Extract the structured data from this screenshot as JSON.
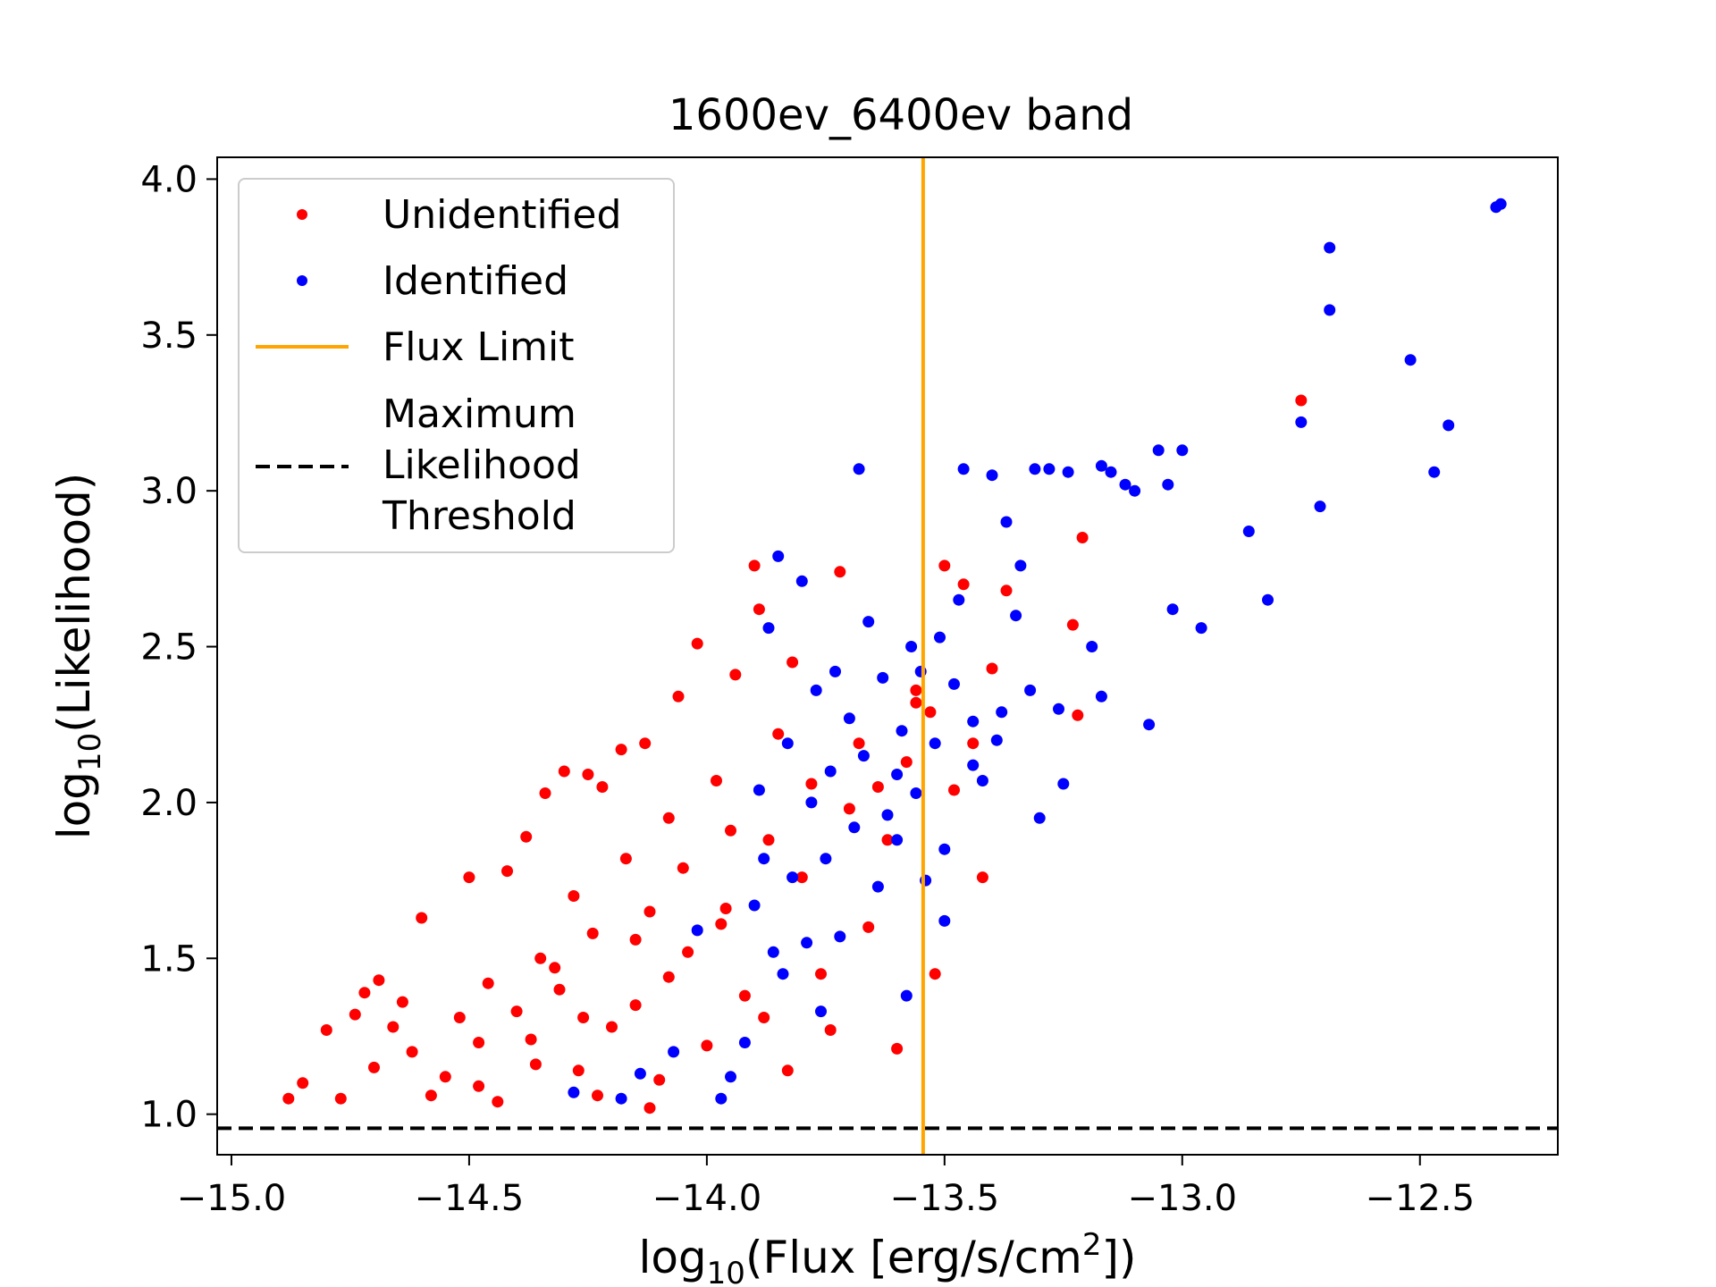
{
  "chart_data": {
    "type": "scatter",
    "title": "1600ev_6400ev band",
    "xlabel": {
      "prefix": "log",
      "sub": "10",
      "text": "(Flux [erg/s/cm",
      "sup": "2",
      "suffix": "])"
    },
    "ylabel": {
      "prefix": "log",
      "sub": "10",
      "text": "(Likelihood)"
    },
    "xlim": [
      -15.03,
      -12.21
    ],
    "ylim": [
      0.87,
      4.07
    ],
    "xticks": [
      -15.0,
      -14.5,
      -14.0,
      -13.5,
      -13.0,
      -12.5
    ],
    "xtick_labels": [
      "−15.0",
      "−14.5",
      "−14.0",
      "−13.5",
      "−13.0",
      "−12.5"
    ],
    "yticks": [
      1.0,
      1.5,
      2.0,
      2.5,
      3.0,
      3.5,
      4.0
    ],
    "ytick_labels": [
      "1.0",
      "1.5",
      "2.0",
      "2.5",
      "3.0",
      "3.5",
      "4.0"
    ],
    "flux_limit": -13.545,
    "likelihood_threshold": 0.955,
    "legend": {
      "position": "upper-left",
      "entries": [
        {
          "label": "Unidentified",
          "marker": "dot",
          "color": "#ff0000"
        },
        {
          "label": "Identified",
          "marker": "dot",
          "color": "#0000ff"
        },
        {
          "label": "Flux Limit",
          "marker": "line",
          "color": "#ffa500"
        },
        {
          "label": "Maximum\nLikelihood\nThreshold",
          "marker": "dashed",
          "color": "#000000"
        }
      ]
    },
    "colors": {
      "unidentified": "#ff0000",
      "identified": "#0000ff",
      "flux_limit": "#ffa500",
      "threshold": "#000000"
    },
    "series": [
      {
        "name": "Unidentified",
        "points": [
          [
            -14.88,
            1.05
          ],
          [
            -14.85,
            1.1
          ],
          [
            -14.8,
            1.27
          ],
          [
            -14.77,
            1.05
          ],
          [
            -14.74,
            1.32
          ],
          [
            -14.72,
            1.39
          ],
          [
            -14.7,
            1.15
          ],
          [
            -14.69,
            1.43
          ],
          [
            -14.66,
            1.28
          ],
          [
            -14.64,
            1.36
          ],
          [
            -14.62,
            1.2
          ],
          [
            -14.6,
            1.63
          ],
          [
            -14.58,
            1.06
          ],
          [
            -14.55,
            1.12
          ],
          [
            -14.52,
            1.31
          ],
          [
            -14.5,
            1.76
          ],
          [
            -14.48,
            1.23
          ],
          [
            -14.46,
            1.42
          ],
          [
            -14.44,
            1.04
          ],
          [
            -14.42,
            1.78
          ],
          [
            -14.4,
            1.33
          ],
          [
            -14.38,
            1.89
          ],
          [
            -14.36,
            1.16
          ],
          [
            -14.35,
            1.5
          ],
          [
            -14.34,
            2.03
          ],
          [
            -14.31,
            1.4
          ],
          [
            -14.3,
            2.1
          ],
          [
            -14.28,
            1.7
          ],
          [
            -14.27,
            1.14
          ],
          [
            -14.25,
            2.09
          ],
          [
            -14.24,
            1.58
          ],
          [
            -14.22,
            2.05
          ],
          [
            -14.2,
            1.28
          ],
          [
            -14.18,
            2.17
          ],
          [
            -14.17,
            1.82
          ],
          [
            -14.15,
            1.35
          ],
          [
            -14.13,
            2.19
          ],
          [
            -14.12,
            1.65
          ],
          [
            -14.1,
            1.11
          ],
          [
            -14.08,
            1.95
          ],
          [
            -14.06,
            2.34
          ],
          [
            -14.04,
            1.52
          ],
          [
            -14.02,
            2.51
          ],
          [
            -14.0,
            1.22
          ],
          [
            -13.98,
            2.07
          ],
          [
            -13.96,
            1.66
          ],
          [
            -13.94,
            2.41
          ],
          [
            -13.92,
            1.38
          ],
          [
            -13.9,
            2.76
          ],
          [
            -13.89,
            2.62
          ],
          [
            -13.87,
            1.88
          ],
          [
            -13.85,
            2.22
          ],
          [
            -13.83,
            1.14
          ],
          [
            -13.82,
            2.45
          ],
          [
            -13.8,
            1.76
          ],
          [
            -13.78,
            2.06
          ],
          [
            -13.76,
            1.45
          ],
          [
            -13.74,
            1.27
          ],
          [
            -13.72,
            2.74
          ],
          [
            -13.7,
            1.98
          ],
          [
            -13.68,
            2.19
          ],
          [
            -13.66,
            1.6
          ],
          [
            -13.64,
            2.05
          ],
          [
            -13.62,
            1.88
          ],
          [
            -13.6,
            1.21
          ],
          [
            -13.58,
            2.13
          ],
          [
            -13.56,
            2.32
          ],
          [
            -13.53,
            2.29
          ],
          [
            -13.5,
            2.76
          ],
          [
            -13.48,
            2.04
          ],
          [
            -13.46,
            2.7
          ],
          [
            -13.44,
            2.19
          ],
          [
            -13.42,
            1.76
          ],
          [
            -13.4,
            2.43
          ],
          [
            -13.37,
            2.68
          ],
          [
            -13.23,
            2.57
          ],
          [
            -13.22,
            2.28
          ],
          [
            -13.21,
            2.85
          ],
          [
            -12.75,
            3.29
          ],
          [
            -13.52,
            1.45
          ],
          [
            -13.56,
            2.36
          ],
          [
            -13.88,
            1.31
          ],
          [
            -14.23,
            1.06
          ],
          [
            -14.12,
            1.02
          ],
          [
            -14.48,
            1.09
          ],
          [
            -14.08,
            1.44
          ],
          [
            -13.97,
            1.61
          ],
          [
            -14.26,
            1.31
          ],
          [
            -14.37,
            1.24
          ],
          [
            -14.05,
            1.79
          ],
          [
            -13.95,
            1.91
          ],
          [
            -14.15,
            1.56
          ],
          [
            -14.32,
            1.47
          ]
        ]
      },
      {
        "name": "Identified",
        "points": [
          [
            -12.33,
            3.92
          ],
          [
            -12.34,
            3.91
          ],
          [
            -12.69,
            3.78
          ],
          [
            -12.69,
            3.58
          ],
          [
            -12.52,
            3.42
          ],
          [
            -12.75,
            3.22
          ],
          [
            -12.44,
            3.21
          ],
          [
            -12.47,
            3.06
          ],
          [
            -12.71,
            2.95
          ],
          [
            -12.86,
            2.87
          ],
          [
            -12.82,
            2.65
          ],
          [
            -12.96,
            2.56
          ],
          [
            -13.03,
            3.02
          ],
          [
            -13.05,
            3.13
          ],
          [
            -13.0,
            3.13
          ],
          [
            -13.02,
            2.62
          ],
          [
            -13.07,
            2.25
          ],
          [
            -13.1,
            3.0
          ],
          [
            -13.12,
            3.02
          ],
          [
            -13.15,
            3.06
          ],
          [
            -13.17,
            2.34
          ],
          [
            -13.17,
            3.08
          ],
          [
            -13.19,
            2.5
          ],
          [
            -13.24,
            3.06
          ],
          [
            -13.25,
            2.06
          ],
          [
            -13.26,
            2.3
          ],
          [
            -13.28,
            3.07
          ],
          [
            -13.3,
            1.95
          ],
          [
            -13.31,
            3.07
          ],
          [
            -13.32,
            2.36
          ],
          [
            -13.34,
            2.76
          ],
          [
            -13.35,
            2.6
          ],
          [
            -13.37,
            2.9
          ],
          [
            -13.38,
            2.29
          ],
          [
            -13.39,
            2.2
          ],
          [
            -13.4,
            3.05
          ],
          [
            -13.42,
            2.07
          ],
          [
            -13.44,
            2.26
          ],
          [
            -13.46,
            3.07
          ],
          [
            -13.47,
            2.65
          ],
          [
            -13.48,
            2.38
          ],
          [
            -13.5,
            1.62
          ],
          [
            -13.51,
            2.53
          ],
          [
            -13.52,
            2.19
          ],
          [
            -13.54,
            1.75
          ],
          [
            -13.55,
            2.42
          ],
          [
            -13.56,
            2.03
          ],
          [
            -13.57,
            2.5
          ],
          [
            -13.58,
            1.38
          ],
          [
            -13.59,
            2.23
          ],
          [
            -13.6,
            2.09
          ],
          [
            -13.62,
            1.96
          ],
          [
            -13.63,
            2.4
          ],
          [
            -13.64,
            1.73
          ],
          [
            -13.66,
            2.58
          ],
          [
            -13.67,
            2.15
          ],
          [
            -13.68,
            3.07
          ],
          [
            -13.69,
            1.92
          ],
          [
            -13.7,
            2.27
          ],
          [
            -13.72,
            1.57
          ],
          [
            -13.73,
            2.42
          ],
          [
            -13.74,
            2.1
          ],
          [
            -13.75,
            1.82
          ],
          [
            -13.77,
            2.36
          ],
          [
            -13.78,
            2.0
          ],
          [
            -13.79,
            1.55
          ],
          [
            -13.8,
            2.71
          ],
          [
            -13.82,
            1.76
          ],
          [
            -13.83,
            2.19
          ],
          [
            -13.84,
            1.45
          ],
          [
            -13.85,
            2.79
          ],
          [
            -13.87,
            2.56
          ],
          [
            -13.88,
            1.82
          ],
          [
            -13.89,
            2.04
          ],
          [
            -13.9,
            1.67
          ],
          [
            -13.92,
            1.23
          ],
          [
            -13.95,
            1.12
          ],
          [
            -13.97,
            1.05
          ],
          [
            -14.02,
            1.59
          ],
          [
            -14.07,
            1.2
          ],
          [
            -14.14,
            1.13
          ],
          [
            -14.18,
            1.05
          ],
          [
            -14.28,
            1.07
          ],
          [
            -13.6,
            1.88
          ],
          [
            -13.76,
            1.33
          ],
          [
            -13.5,
            1.85
          ],
          [
            -13.44,
            2.12
          ],
          [
            -13.86,
            1.52
          ]
        ]
      }
    ]
  }
}
